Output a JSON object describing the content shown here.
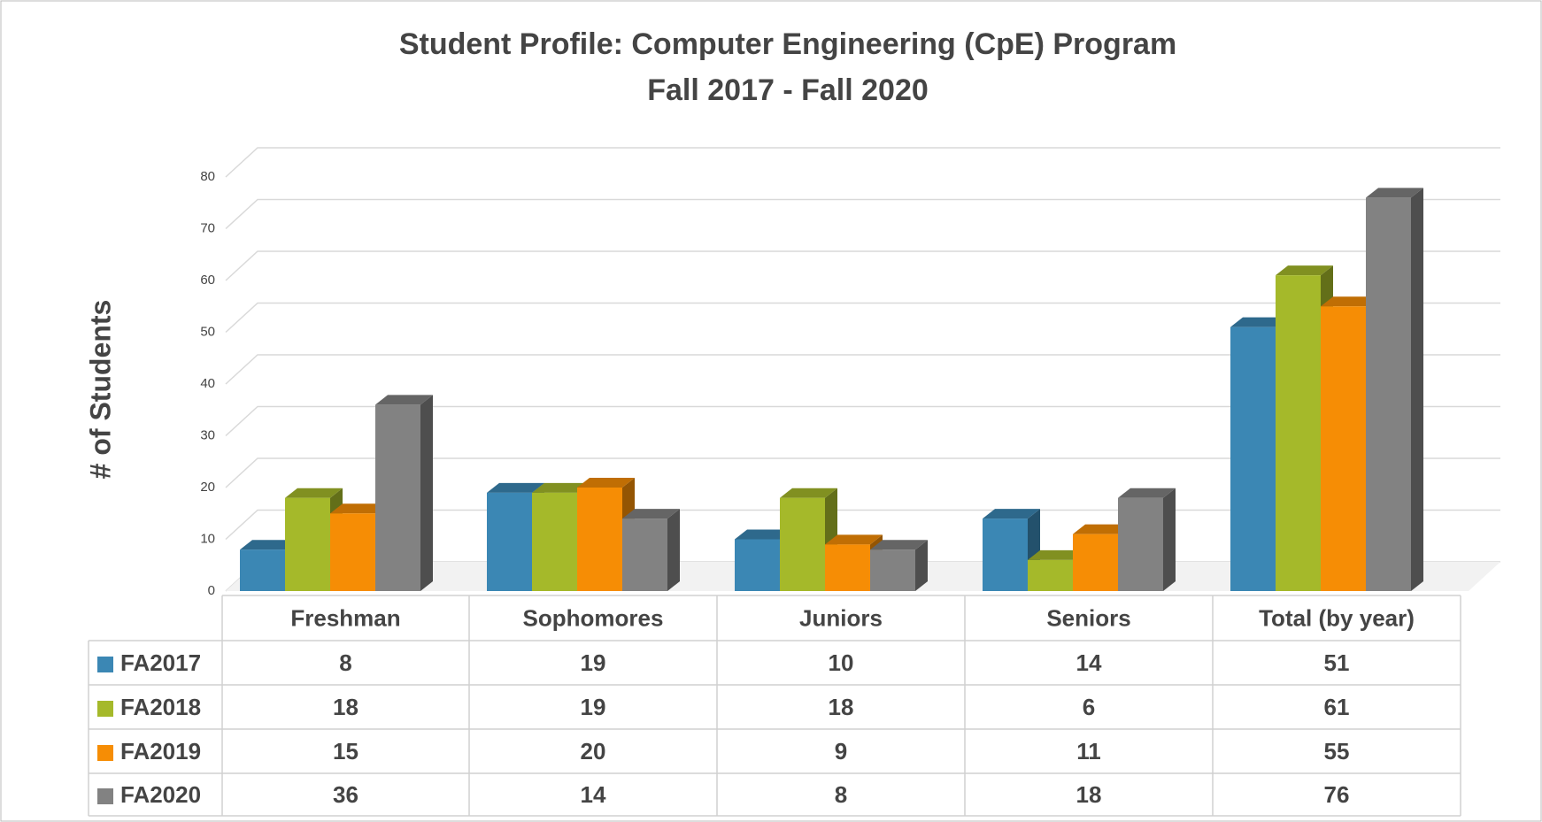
{
  "chart_data": {
    "type": "bar3d",
    "title": "Student Profile: Computer Engineering (CpE) Program",
    "subtitle": "Fall 2017 - Fall 2020",
    "y_label": "# of Students",
    "categories": [
      "Freshman",
      "Sophomores",
      "Juniors",
      "Seniors",
      "Total (by year)"
    ],
    "series": [
      {
        "name": "FA2017",
        "color": "#3b87b4",
        "values": [
          8,
          19,
          10,
          14,
          51
        ]
      },
      {
        "name": "FA2018",
        "color": "#a5b92a",
        "values": [
          18,
          19,
          18,
          6,
          61
        ]
      },
      {
        "name": "FA2019",
        "color": "#f68d05",
        "values": [
          15,
          20,
          9,
          11,
          55
        ]
      },
      {
        "name": "FA2020",
        "color": "#828282",
        "values": [
          36,
          14,
          8,
          18,
          76
        ]
      }
    ],
    "ylim": [
      0,
      80
    ],
    "yticks": [
      0,
      10,
      20,
      30,
      40,
      50,
      60,
      70,
      80
    ],
    "grid": true
  }
}
